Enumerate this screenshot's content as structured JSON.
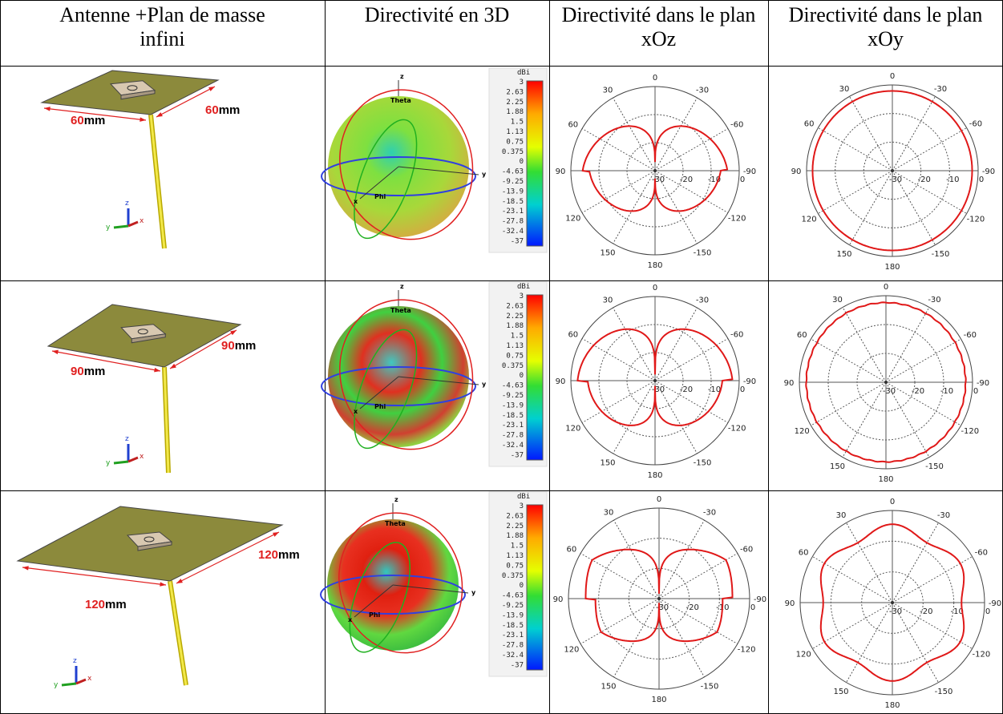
{
  "header": [
    "Antenne +Plan de masse infini",
    "Directivité en 3D",
    "Directivité dans le plan xOz",
    "Directivité dans le plan xOy"
  ],
  "rows": [
    {
      "size": {
        "number": "60",
        "unit": "mm"
      }
    },
    {
      "size": {
        "number": "90",
        "unit": "mm"
      }
    },
    {
      "size": {
        "number": "120",
        "unit": "mm"
      }
    }
  ],
  "triad": {
    "z": "z",
    "y": "y",
    "x": "x"
  },
  "axes3d": {
    "z": "z",
    "y": "y",
    "x": "x",
    "theta": "Theta",
    "phi": "Phi"
  },
  "colorbar": {
    "unit": "dBi",
    "labels": [
      "3",
      "2.63",
      "2.25",
      "1.88",
      "1.5",
      "1.13",
      "0.75",
      "0.375",
      "0",
      "-4.63",
      "-9.25",
      "-13.9",
      "-18.5",
      "-23.1",
      "-27.8",
      "-32.4",
      "-37"
    ]
  },
  "polar": {
    "angle_labels": [
      0,
      30,
      60,
      90,
      120,
      150,
      180,
      -150,
      -120,
      -90,
      -60,
      -30
    ],
    "radial_labels": [
      -30,
      -20,
      -10,
      0
    ]
  }
}
